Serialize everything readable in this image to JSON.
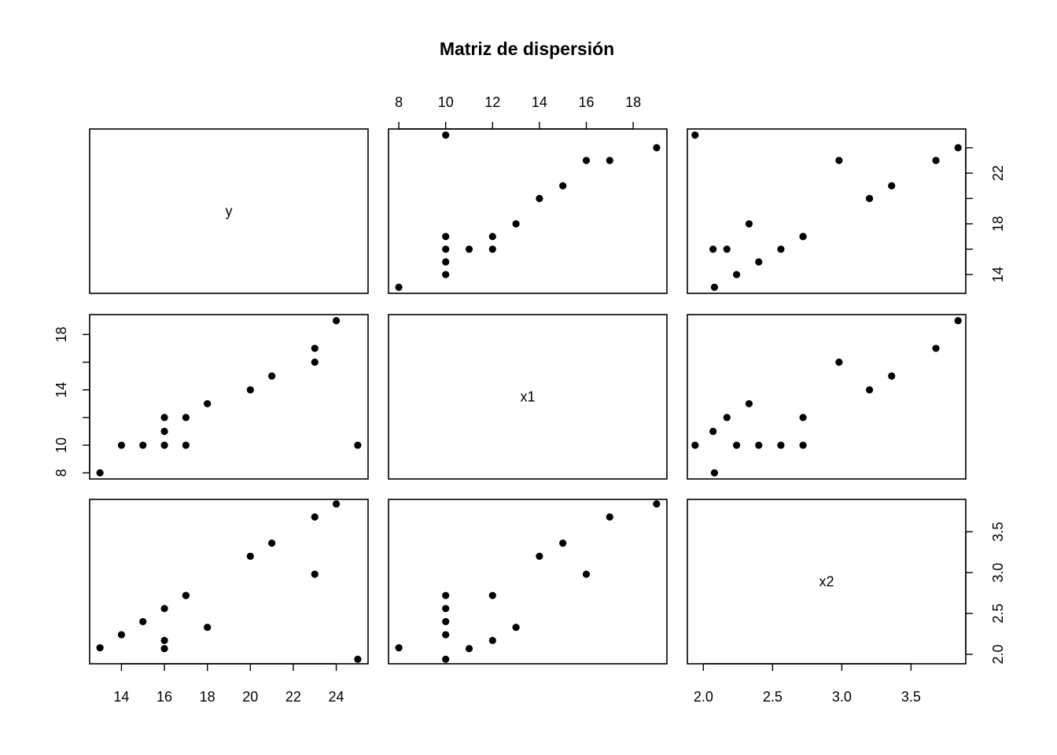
{
  "chart_data": {
    "type": "scatter-matrix",
    "title": "Matriz de dispersión",
    "variables": [
      "y",
      "x1",
      "x2"
    ],
    "observations": [
      {
        "y": 13,
        "x1": 8,
        "x2": 2.08
      },
      {
        "y": 14,
        "x1": 10,
        "x2": 2.24
      },
      {
        "y": 15,
        "x1": 10,
        "x2": 2.4
      },
      {
        "y": 16,
        "x1": 10,
        "x2": 2.56
      },
      {
        "y": 16,
        "x1": 11,
        "x2": 2.07
      },
      {
        "y": 16,
        "x1": 12,
        "x2": 2.17
      },
      {
        "y": 17,
        "x1": 10,
        "x2": 2.72
      },
      {
        "y": 17,
        "x1": 12,
        "x2": 2.72
      },
      {
        "y": 18,
        "x1": 13,
        "x2": 2.33
      },
      {
        "y": 20,
        "x1": 14,
        "x2": 3.2
      },
      {
        "y": 21,
        "x1": 15,
        "x2": 3.36
      },
      {
        "y": 23,
        "x1": 16,
        "x2": 2.98
      },
      {
        "y": 23,
        "x1": 17,
        "x2": 3.68
      },
      {
        "y": 24,
        "x1": 19,
        "x2": 3.84
      },
      {
        "y": 25,
        "x1": 10,
        "x2": 1.94
      }
    ],
    "ranges": {
      "y": [
        12.52,
        25.48
      ],
      "x1": [
        7.56,
        19.44
      ],
      "x2": [
        1.8844,
        3.8956
      ]
    },
    "axes": {
      "y": {
        "ticks": [
          14,
          16,
          18,
          20,
          22,
          24
        ],
        "minor_ticks": [
          14,
          16,
          18,
          20,
          22,
          24
        ],
        "tick_labels": [
          "14",
          "18",
          "22"
        ],
        "bottom_labels": [
          "14",
          "16",
          "18",
          "20",
          "22",
          "24"
        ]
      },
      "x1": {
        "ticks": [
          8,
          10,
          12,
          14,
          16,
          18
        ],
        "top_labels": [
          "8",
          "10",
          "12",
          "14",
          "16",
          "18"
        ],
        "left_labels": [
          "8",
          "10",
          "14",
          "18"
        ]
      },
      "x2": {
        "ticks": [
          2.0,
          2.5,
          3.0,
          3.5
        ],
        "bottom_labels": [
          "2.0",
          "2.5",
          "3.0",
          "3.5"
        ],
        "right_labels": [
          "2.0",
          "2.5",
          "3.0",
          "3.5"
        ]
      }
    },
    "grid": false,
    "legend": "none"
  }
}
